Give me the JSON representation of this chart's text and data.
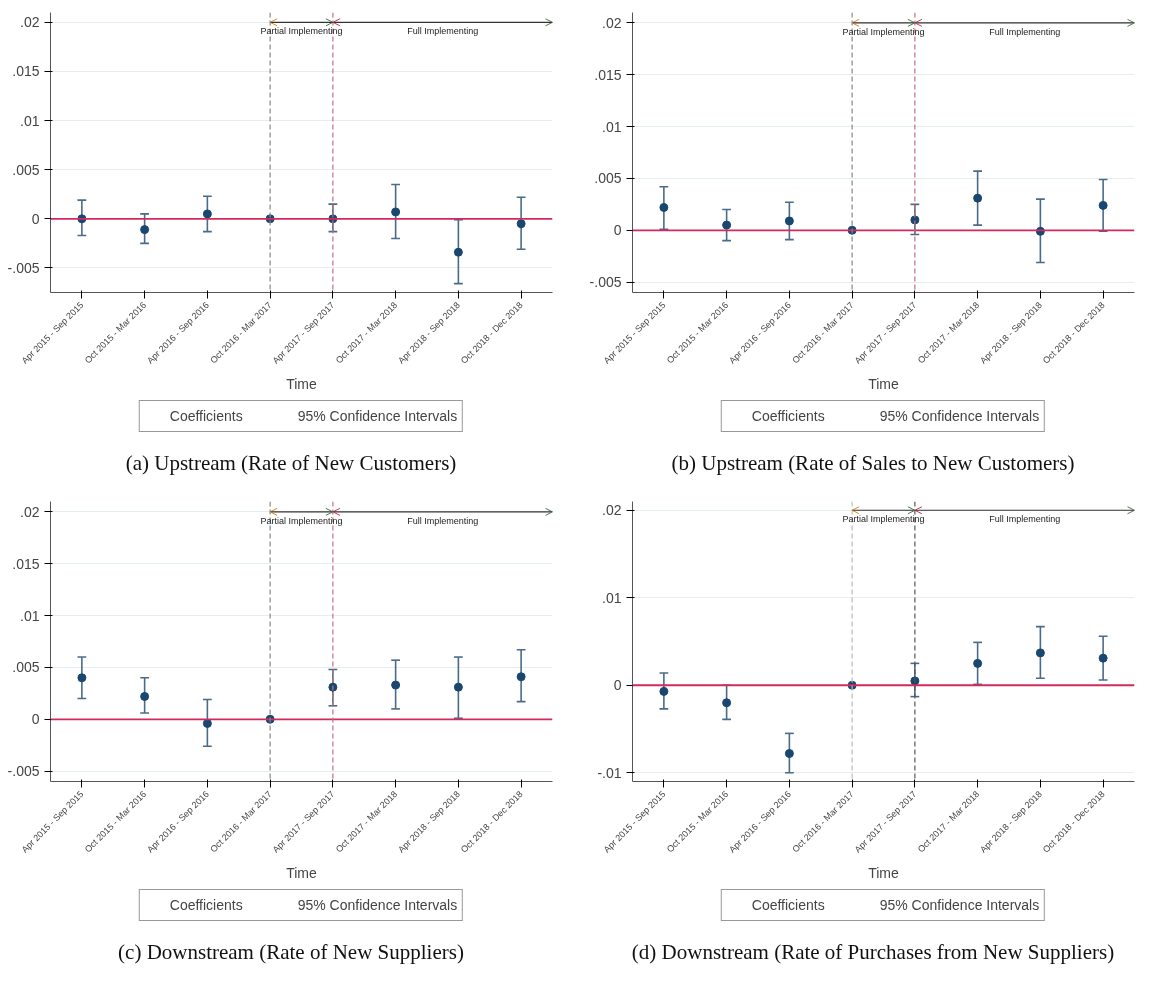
{
  "chart_data": [
    {
      "type": "scatter",
      "title": "(a) Upstream (Rate of New Customers)",
      "xlabel": "Time",
      "categories": [
        "Apr 2015 - Sep 2015",
        "Oct 2015 - Mar 2016",
        "Apr 2016 - Sep 2016",
        "Oct 2016 - Mar 2017",
        "Apr 2017 - Sep 2017",
        "Oct 2017 - Mar 2018",
        "Apr 2018 - Sep 2018",
        "Oct 2018 - Dec 2018"
      ],
      "series": [
        {
          "name": "Coefficients",
          "color": "#1a476f",
          "values": [
            0.0,
            -0.0011,
            0.0005,
            0.0,
            0.0,
            0.0007,
            -0.0034,
            -0.0005
          ],
          "errors": [
            [
              -0.0017,
              0.0019
            ],
            [
              -0.0025,
              0.0005
            ],
            [
              -0.0013,
              0.0023
            ],
            null,
            [
              -0.0013,
              0.0015
            ],
            [
              -0.002,
              0.0035
            ],
            [
              -0.0066,
              -0.0001
            ],
            [
              -0.0031,
              0.0022
            ]
          ]
        }
      ],
      "annotations": [
        "Partial Implementing",
        "Full Implementing",
        "95% Confidence Intervals"
      ],
      "ylim": [
        -0.0075,
        0.021
      ],
      "yticks": [
        {
          "value": -0.005,
          "label": "-.005"
        },
        0,
        {
          "value": 0.005,
          "label": ".005"
        },
        {
          "value": 0.01,
          "label": ".01"
        },
        {
          "value": 0.015,
          "label": ".015"
        },
        {
          "value": 0.02,
          "label": ".02"
        }
      ],
      "ref_lines": [
        {
          "axis": "y",
          "value": 0,
          "color": "#d12a5b",
          "line_style": "solid"
        },
        {
          "axis": "x",
          "value": "Oct 2016 - Mar 2017",
          "color": "#888888",
          "line_style": "dashed"
        },
        {
          "axis": "x",
          "value": "Apr 2017 - Sep 2017",
          "color": "#c07080",
          "line_style": "dashed"
        }
      ],
      "grid": "y",
      "legend": "bottom",
      "marker": "circle"
    },
    {
      "type": "scatter",
      "title": "(b) Upstream (Rate of Sales to New Customers)",
      "xlabel": "Time",
      "categories": [
        "Apr 2015 - Sep 2015",
        "Oct 2015 - Mar 2016",
        "Apr 2016 - Sep 2016",
        "Oct 2016 - Mar 2017",
        "Apr 2017 - Sep 2017",
        "Oct 2017 - Mar 2018",
        "Apr 2018 - Sep 2018",
        "Oct 2018 - Dec 2018"
      ],
      "series": [
        {
          "name": "Coefficients",
          "color": "#1a476f",
          "values": [
            0.0022,
            0.0005,
            0.0009,
            0.0,
            0.001,
            0.0031,
            -0.0001,
            0.0024
          ],
          "errors": [
            [
              0.0001,
              0.0042
            ],
            [
              -0.001,
              0.002
            ],
            [
              -0.0009,
              0.0027
            ],
            null,
            [
              -0.0004,
              0.0025
            ],
            [
              0.0005,
              0.0057
            ],
            [
              -0.0031,
              0.003
            ],
            [
              -0.0001,
              0.0049
            ]
          ]
        }
      ],
      "annotations": [
        "Partial Implementing",
        "Full Implementing",
        "95% Confidence Intervals"
      ],
      "ylim": [
        -0.006,
        0.021
      ],
      "yticks": [
        {
          "value": -0.005,
          "label": "-.005"
        },
        0,
        {
          "value": 0.005,
          "label": ".005"
        },
        {
          "value": 0.01,
          "label": ".01"
        },
        {
          "value": 0.015,
          "label": ".015"
        },
        {
          "value": 0.02,
          "label": ".02"
        }
      ],
      "ref_lines": [
        {
          "axis": "y",
          "value": 0,
          "color": "#d12a5b",
          "line_style": "solid"
        },
        {
          "axis": "x",
          "value": "Oct 2016 - Mar 2017",
          "color": "#888888",
          "line_style": "dashed"
        },
        {
          "axis": "x",
          "value": "Apr 2017 - Sep 2017",
          "color": "#c07080",
          "line_style": "dashed"
        }
      ],
      "grid": "y",
      "legend": "bottom",
      "marker": "circle"
    },
    {
      "type": "scatter",
      "title": "(c) Downstream (Rate of New Suppliers)",
      "xlabel": "Time",
      "categories": [
        "Apr 2015 - Sep 2015",
        "Oct 2015 - Mar 2016",
        "Apr 2016 - Sep 2016",
        "Oct 2016 - Mar 2017",
        "Apr 2017 - Sep 2017",
        "Oct 2017 - Mar 2018",
        "Apr 2018 - Sep 2018",
        "Oct 2018 - Dec 2018"
      ],
      "series": [
        {
          "name": "Coefficients",
          "color": "#1a476f",
          "values": [
            0.004,
            0.0022,
            -0.0004,
            0.0,
            0.0031,
            0.0033,
            0.0031,
            0.0041
          ],
          "errors": [
            [
              0.002,
              0.006
            ],
            [
              0.0006,
              0.004
            ],
            [
              -0.0026,
              0.0019
            ],
            null,
            [
              0.0013,
              0.0048
            ],
            [
              0.001,
              0.0057
            ],
            [
              0.0001,
              0.006
            ],
            [
              0.0017,
              0.0067
            ]
          ]
        }
      ],
      "annotations": [
        "Partial Implementing",
        "Full Implementing",
        "95% Confidence Intervals"
      ],
      "ylim": [
        -0.006,
        0.021
      ],
      "yticks": [
        {
          "value": -0.005,
          "label": "-.005"
        },
        0,
        {
          "value": 0.005,
          "label": ".005"
        },
        {
          "value": 0.01,
          "label": ".01"
        },
        {
          "value": 0.015,
          "label": ".015"
        },
        {
          "value": 0.02,
          "label": ".02"
        }
      ],
      "ref_lines": [
        {
          "axis": "y",
          "value": 0,
          "color": "#d12a5b",
          "line_style": "solid"
        },
        {
          "axis": "x",
          "value": "Oct 2016 - Mar 2017",
          "color": "#888888",
          "line_style": "dashed"
        },
        {
          "axis": "x",
          "value": "Apr 2017 - Sep 2017",
          "color": "#c07080",
          "line_style": "dashed"
        }
      ],
      "grid": "y",
      "legend": "bottom",
      "marker": "circle"
    },
    {
      "type": "scatter",
      "title": "(d) Downstream (Rate of Purchases from New Suppliers)",
      "xlabel": "Time",
      "categories": [
        "Apr 2015 - Sep 2015",
        "Oct 2015 - Mar 2016",
        "Apr 2016 - Sep 2016",
        "Oct 2016 - Mar 2017",
        "Apr 2017 - Sep 2017",
        "Oct 2017 - Mar 2018",
        "Apr 2018 - Sep 2018",
        "Oct 2018 - Dec 2018"
      ],
      "series": [
        {
          "name": "Coefficients",
          "color": "#1a476f",
          "values": [
            -0.0007,
            -0.002,
            -0.0078,
            0.0,
            0.0005,
            0.0025,
            0.0037,
            0.0031
          ],
          "errors": [
            [
              -0.0027,
              0.0014
            ],
            [
              -0.0039,
              0.0
            ],
            [
              -0.01,
              -0.0055
            ],
            null,
            [
              -0.0013,
              0.0025
            ],
            [
              0.0001,
              0.0049
            ],
            [
              0.0008,
              0.0067
            ],
            [
              0.0006,
              0.0056
            ]
          ]
        }
      ],
      "annotations": [
        "Partial Implementing",
        "Full Implementing",
        "95% Confidence Intervals"
      ],
      "ylim": [
        -0.011,
        0.021
      ],
      "yticks": [
        {
          "value": -0.01,
          "label": "-.01"
        },
        0,
        {
          "value": 0.01,
          "label": ".01"
        },
        {
          "value": 0.02,
          "label": ".02"
        }
      ],
      "ref_lines": [
        {
          "axis": "y",
          "value": 0,
          "color": "#d12a5b",
          "line_style": "solid"
        },
        {
          "axis": "x",
          "value": "Oct 2016 - Mar 2017",
          "color": "#bbbbbb",
          "line_style": "dashed"
        },
        {
          "axis": "x",
          "value": "Apr 2017 - Sep 2017",
          "color": "#555555",
          "line_style": "dashed"
        }
      ],
      "grid": "y",
      "legend": "bottom",
      "marker": "circle"
    }
  ]
}
